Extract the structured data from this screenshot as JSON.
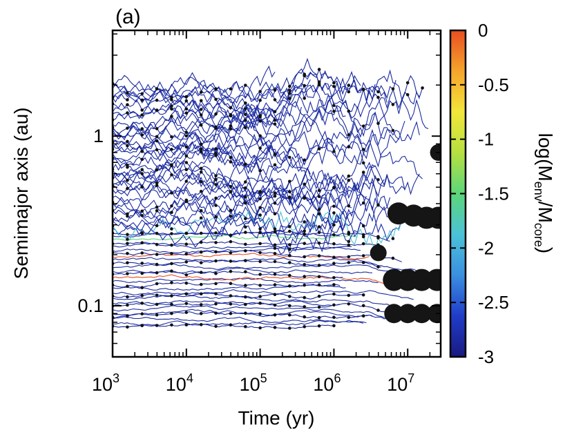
{
  "panel_label": "(a)",
  "chart_data": {
    "type": "line",
    "xlabel": "Time (yr)",
    "ylabel": "Semimajor axis (au)",
    "x_scale": "log",
    "y_scale": "log",
    "xlim": [
      1000,
      28000000
    ],
    "ylim": [
      0.05,
      4.2
    ],
    "x_ticks": [
      {
        "value": 1000,
        "base": "10",
        "exp": "3"
      },
      {
        "value": 10000,
        "base": "10",
        "exp": "4"
      },
      {
        "value": 100000,
        "base": "10",
        "exp": "5"
      },
      {
        "value": 1000000,
        "base": "10",
        "exp": "6"
      },
      {
        "value": 10000000,
        "base": "10",
        "exp": "7"
      }
    ],
    "y_ticks": [
      {
        "value": 0.1,
        "label": "0.1"
      },
      {
        "value": 1,
        "label": "1"
      }
    ],
    "colorbar": {
      "label": "log(Menv/Mcore)",
      "range": [
        -3,
        0
      ],
      "ticks": [
        {
          "value": 0,
          "label": "0"
        },
        {
          "value": -0.5,
          "label": "-0.5"
        },
        {
          "value": -1,
          "label": "-1"
        },
        {
          "value": -1.5,
          "label": "-1.5"
        },
        {
          "value": -2,
          "label": "-2"
        },
        {
          "value": -2.5,
          "label": "-2.5"
        },
        {
          "value": -3,
          "label": "-3"
        }
      ],
      "colors": [
        "#1a1a80",
        "#1f3cc8",
        "#3b8fe0",
        "#4cc2d6",
        "#5cd67a",
        "#b6e040",
        "#f2e63a",
        "#f6a42c",
        "#e84e22"
      ]
    },
    "series_color_default": "#1a2aa0",
    "marker_color": "#111111",
    "final_planets": [
      {
        "t": 26000000,
        "a": 0.8,
        "size": 1
      },
      {
        "t": 7500000,
        "a": 0.35,
        "size": 2
      },
      {
        "t": 12000000,
        "a": 0.34,
        "size": 2
      },
      {
        "t": 18000000,
        "a": 0.33,
        "size": 2
      },
      {
        "t": 26000000,
        "a": 0.33,
        "size": 2
      },
      {
        "t": 4000000,
        "a": 0.205,
        "size": 1
      },
      {
        "t": 6500000,
        "a": 0.142,
        "size": 2
      },
      {
        "t": 10000000,
        "a": 0.142,
        "size": 2
      },
      {
        "t": 15500000,
        "a": 0.142,
        "size": 2
      },
      {
        "t": 25000000,
        "a": 0.142,
        "size": 2
      },
      {
        "t": 6500000,
        "a": 0.09,
        "size": 1.5
      },
      {
        "t": 10000000,
        "a": 0.09,
        "size": 1.5
      },
      {
        "t": 15500000,
        "a": 0.09,
        "size": 1.5
      },
      {
        "t": 25000000,
        "a": 0.09,
        "size": 1.5
      }
    ]
  }
}
